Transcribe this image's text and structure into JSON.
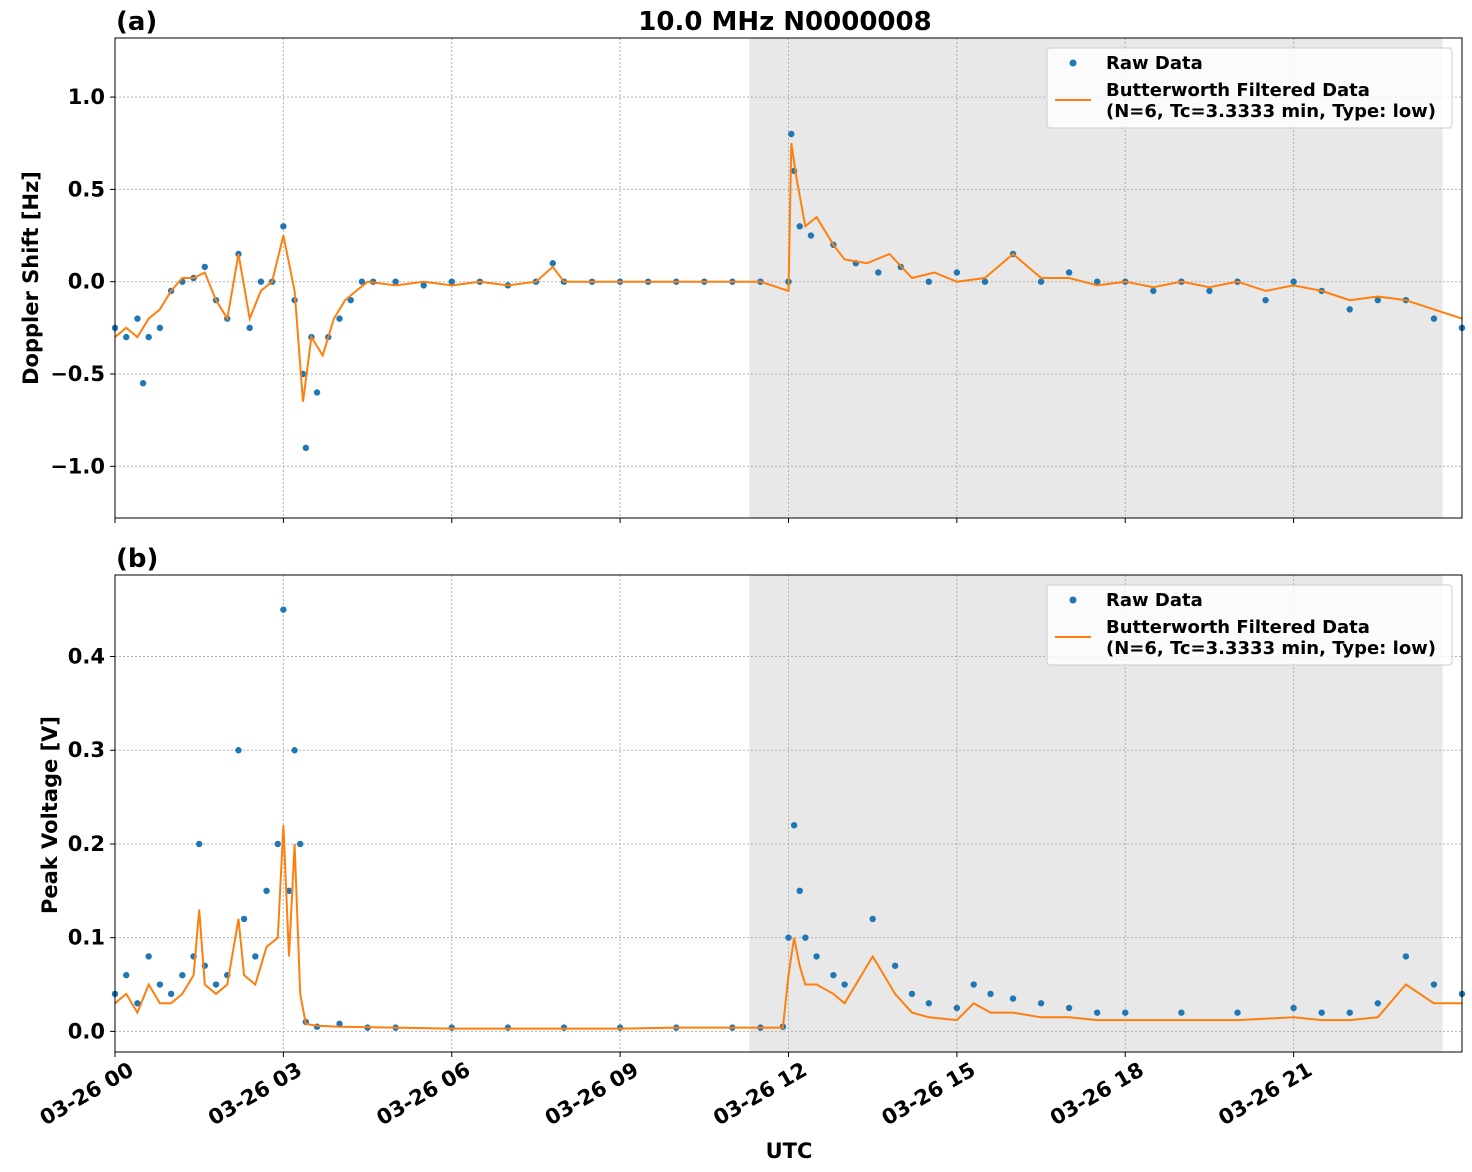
{
  "figure": {
    "title": "10.0 MHz N0000008",
    "xlabel": "UTC"
  },
  "colors": {
    "raw": "#1f77b4",
    "filtered": "#ff7f0e",
    "shade": "#e8e8e8",
    "grid": "#b0b0b0"
  },
  "legend": {
    "raw_label": "Raw Data",
    "filtered_label_line1": "Butterworth Filtered Data",
    "filtered_label_line2": "(N=6, Tc=3.3333 min, Type: low)",
    "placement": "top-right"
  },
  "chart_data": [
    {
      "type": "scatter",
      "panel_label": "(a)",
      "ylabel": "Doppler Shift [Hz]",
      "x_unit": "hours since 03-26 00:00 UTC",
      "xlim": [
        0,
        24
      ],
      "ylim": [
        -1.28,
        1.32
      ],
      "yticks": [
        1.0,
        0.5,
        0.0,
        -0.5,
        -1.0
      ],
      "ytick_labels": [
        "1.0",
        "0.5",
        "0.0",
        "−0.5",
        "−1.0"
      ],
      "xticks": [
        0,
        3,
        6,
        9,
        12,
        15,
        18,
        21
      ],
      "xtick_labels": [
        "03-26 00",
        "03-26 03",
        "03-26 06",
        "03-26 09",
        "03-26 12",
        "03-26 15",
        "03-26 18",
        "03-26 21"
      ],
      "shaded_interval": [
        11.3,
        23.65
      ],
      "grid": true,
      "legend": "top-right",
      "series": [
        {
          "name": "Raw Data",
          "style": "points",
          "x": [
            0,
            0.2,
            0.4,
            0.5,
            0.6,
            0.8,
            1.0,
            1.2,
            1.4,
            1.6,
            1.8,
            2.0,
            2.2,
            2.4,
            2.6,
            2.8,
            3.0,
            3.2,
            3.35,
            3.4,
            3.5,
            3.6,
            3.8,
            4.0,
            4.2,
            4.4,
            4.6,
            5.0,
            5.5,
            6.0,
            6.5,
            7.0,
            7.5,
            7.8,
            8.0,
            8.5,
            9.0,
            9.5,
            10.0,
            10.5,
            11.0,
            11.5,
            12.0,
            12.05,
            12.1,
            12.2,
            12.4,
            12.8,
            13.2,
            13.6,
            14.0,
            14.5,
            15.0,
            15.5,
            16.0,
            16.5,
            17.0,
            17.5,
            18.0,
            18.5,
            19.0,
            19.5,
            20.0,
            20.5,
            21.0,
            21.5,
            22.0,
            22.5,
            23.0,
            23.5,
            24.0
          ],
          "y": [
            -0.25,
            -0.3,
            -0.2,
            -0.55,
            -0.3,
            -0.25,
            -0.05,
            0.0,
            0.02,
            0.08,
            -0.1,
            -0.2,
            0.15,
            -0.25,
            0.0,
            0.0,
            0.3,
            -0.1,
            -0.5,
            -0.9,
            -0.3,
            -0.6,
            -0.3,
            -0.2,
            -0.1,
            0.0,
            0.0,
            0.0,
            -0.02,
            0.0,
            0.0,
            -0.02,
            0.0,
            0.1,
            0.0,
            0.0,
            0.0,
            0.0,
            0.0,
            0.0,
            0.0,
            0.0,
            0.0,
            0.8,
            0.6,
            0.3,
            0.25,
            0.2,
            0.1,
            0.05,
            0.08,
            0.0,
            0.05,
            0.0,
            0.15,
            0.0,
            0.05,
            0.0,
            0.0,
            -0.05,
            0.0,
            -0.05,
            0.0,
            -0.1,
            0.0,
            -0.05,
            -0.15,
            -0.1,
            -0.1,
            -0.2,
            -0.25
          ]
        },
        {
          "name": "Butterworth Filtered Data (N=6, Tc=3.3333 min, Type: low)",
          "style": "line",
          "x": [
            0,
            0.2,
            0.4,
            0.6,
            0.8,
            1.0,
            1.2,
            1.4,
            1.6,
            1.8,
            2.0,
            2.2,
            2.4,
            2.6,
            2.8,
            3.0,
            3.2,
            3.35,
            3.5,
            3.7,
            3.9,
            4.1,
            4.3,
            4.5,
            5.0,
            5.5,
            6.0,
            6.5,
            7.0,
            7.5,
            7.8,
            8.0,
            8.5,
            9.0,
            9.5,
            10.0,
            10.5,
            11.0,
            11.5,
            12.0,
            12.05,
            12.15,
            12.3,
            12.5,
            12.8,
            13.0,
            13.4,
            13.8,
            14.2,
            14.6,
            15.0,
            15.5,
            16.0,
            16.5,
            17.0,
            17.5,
            18.0,
            18.5,
            19.0,
            19.5,
            20.0,
            20.5,
            21.0,
            21.5,
            22.0,
            22.5,
            23.0,
            23.5,
            24.0
          ],
          "y": [
            -0.3,
            -0.25,
            -0.3,
            -0.2,
            -0.15,
            -0.05,
            0.02,
            0.02,
            0.05,
            -0.1,
            -0.2,
            0.15,
            -0.2,
            -0.05,
            0.0,
            0.25,
            -0.05,
            -0.65,
            -0.3,
            -0.4,
            -0.2,
            -0.1,
            -0.05,
            0.0,
            -0.02,
            0.0,
            -0.02,
            0.0,
            -0.02,
            0.0,
            0.08,
            0.0,
            0.0,
            0.0,
            0.0,
            0.0,
            0.0,
            0.0,
            0.0,
            -0.05,
            0.75,
            0.55,
            0.3,
            0.35,
            0.2,
            0.12,
            0.1,
            0.15,
            0.02,
            0.05,
            0.0,
            0.02,
            0.15,
            0.02,
            0.02,
            -0.02,
            0.0,
            -0.03,
            0.0,
            -0.03,
            0.0,
            -0.05,
            -0.02,
            -0.05,
            -0.1,
            -0.08,
            -0.1,
            -0.15,
            -0.2
          ]
        }
      ]
    },
    {
      "type": "scatter",
      "panel_label": "(b)",
      "ylabel": "Peak Voltage [V]",
      "x_unit": "hours since 03-26 00:00 UTC",
      "xlim": [
        0,
        24
      ],
      "ylim": [
        -0.022,
        0.487
      ],
      "yticks": [
        0.0,
        0.1,
        0.2,
        0.3,
        0.4
      ],
      "ytick_labels": [
        "0.0",
        "0.1",
        "0.2",
        "0.3",
        "0.4"
      ],
      "xticks": [
        0,
        3,
        6,
        9,
        12,
        15,
        18,
        21
      ],
      "xtick_labels": [
        "03-26 00",
        "03-26 03",
        "03-26 06",
        "03-26 09",
        "03-26 12",
        "03-26 15",
        "03-26 18",
        "03-26 21"
      ],
      "shaded_interval": [
        11.3,
        23.65
      ],
      "grid": true,
      "legend": "top-right",
      "series": [
        {
          "name": "Raw Data",
          "style": "points",
          "x": [
            0,
            0.2,
            0.4,
            0.6,
            0.8,
            1.0,
            1.2,
            1.4,
            1.5,
            1.6,
            1.8,
            2.0,
            2.2,
            2.3,
            2.5,
            2.7,
            2.9,
            3.0,
            3.1,
            3.2,
            3.3,
            3.4,
            3.6,
            4.0,
            4.5,
            5.0,
            6.0,
            7.0,
            8.0,
            9.0,
            10.0,
            11.0,
            11.5,
            11.9,
            12.0,
            12.1,
            12.2,
            12.3,
            12.5,
            12.8,
            13.0,
            13.5,
            13.9,
            14.2,
            14.5,
            15.0,
            15.3,
            15.6,
            16.0,
            16.5,
            17.0,
            17.5,
            18.0,
            19.0,
            20.0,
            21.0,
            21.5,
            22.0,
            22.5,
            23.0,
            23.5,
            24.0
          ],
          "y": [
            0.04,
            0.06,
            0.03,
            0.08,
            0.05,
            0.04,
            0.06,
            0.08,
            0.2,
            0.07,
            0.05,
            0.06,
            0.3,
            0.12,
            0.08,
            0.15,
            0.2,
            0.45,
            0.15,
            0.3,
            0.2,
            0.01,
            0.005,
            0.008,
            0.004,
            0.004,
            0.004,
            0.004,
            0.004,
            0.004,
            0.004,
            0.004,
            0.004,
            0.005,
            0.1,
            0.22,
            0.15,
            0.1,
            0.08,
            0.06,
            0.05,
            0.12,
            0.07,
            0.04,
            0.03,
            0.025,
            0.05,
            0.04,
            0.035,
            0.03,
            0.025,
            0.02,
            0.02,
            0.02,
            0.02,
            0.025,
            0.02,
            0.02,
            0.03,
            0.08,
            0.05,
            0.04
          ]
        },
        {
          "name": "Butterworth Filtered Data (N=6, Tc=3.3333 min, Type: low)",
          "style": "line",
          "x": [
            0,
            0.2,
            0.4,
            0.6,
            0.8,
            1.0,
            1.2,
            1.4,
            1.5,
            1.6,
            1.8,
            2.0,
            2.2,
            2.3,
            2.5,
            2.7,
            2.9,
            3.0,
            3.1,
            3.2,
            3.3,
            3.4,
            3.6,
            4.0,
            5.0,
            6.0,
            7.0,
            8.0,
            9.0,
            10.0,
            11.0,
            11.9,
            12.0,
            12.1,
            12.2,
            12.3,
            12.5,
            12.8,
            13.0,
            13.5,
            13.9,
            14.2,
            14.5,
            15.0,
            15.3,
            15.6,
            16.0,
            16.5,
            17.0,
            17.5,
            18.0,
            19.0,
            20.0,
            21.0,
            21.5,
            22.0,
            22.5,
            23.0,
            23.5,
            24.0
          ],
          "y": [
            0.03,
            0.04,
            0.02,
            0.05,
            0.03,
            0.03,
            0.04,
            0.06,
            0.13,
            0.05,
            0.04,
            0.05,
            0.12,
            0.06,
            0.05,
            0.09,
            0.1,
            0.22,
            0.08,
            0.2,
            0.04,
            0.008,
            0.006,
            0.005,
            0.004,
            0.003,
            0.003,
            0.003,
            0.003,
            0.004,
            0.004,
            0.004,
            0.06,
            0.1,
            0.07,
            0.05,
            0.05,
            0.04,
            0.03,
            0.08,
            0.04,
            0.02,
            0.015,
            0.012,
            0.03,
            0.02,
            0.02,
            0.015,
            0.015,
            0.012,
            0.012,
            0.012,
            0.012,
            0.015,
            0.012,
            0.012,
            0.015,
            0.05,
            0.03,
            0.03
          ]
        }
      ]
    }
  ]
}
